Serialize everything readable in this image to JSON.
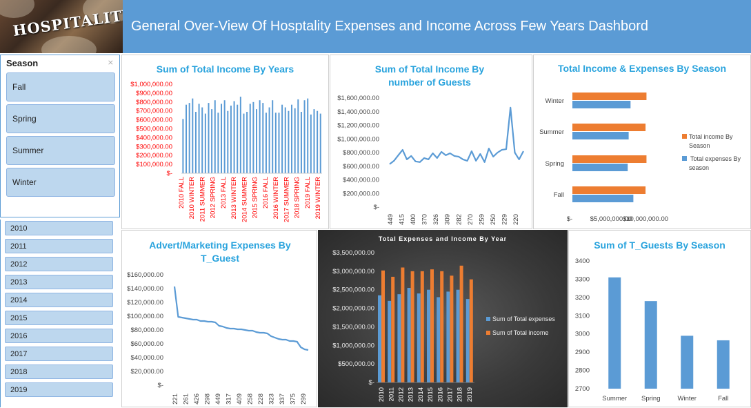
{
  "header": {
    "title": "General Over-View Of Hosptality Expenses and Income Across Few Years Dashbord",
    "logo_text": "HOSPITALITY"
  },
  "season_slicer": {
    "title": "Season",
    "items": [
      "Fall",
      "Spring",
      "Summer",
      "Winter"
    ]
  },
  "year_slicer": {
    "items": [
      "2010",
      "2011",
      "2012",
      "2013",
      "2014",
      "2015",
      "2016",
      "2017",
      "2018",
      "2019"
    ]
  },
  "colors": {
    "blue": "#5b9bd5",
    "orange": "#ed7d31",
    "title": "#29a3dd",
    "red_label": "#ff0000"
  },
  "chart_data": [
    {
      "id": "income_by_years",
      "type": "bar",
      "title": "Sum of Total Income By Years",
      "ylim": [
        0,
        1000000
      ],
      "yticks": [
        "$1,000,000.00",
        "$900,000.00",
        "$800,000.00",
        "$700,000.00",
        "$600,000.00",
        "$500,000.00",
        "$400,000.00",
        "$300,000.00",
        "$200,000.00",
        "$100,000.00",
        "$-"
      ],
      "xtick_labels": [
        "2010 FALL",
        "2010 WINTER",
        "2011 SUMMER",
        "2012 SPRING",
        "2013 FALL",
        "2013 WINTER",
        "2014 SUMMER",
        "2015 SPRING",
        "2016 FALL",
        "2016 WINTER",
        "2017 SUMMER",
        "2018 SPRING",
        "2019 FALL",
        "2019 WINTER"
      ],
      "values": [
        610000,
        770000,
        790000,
        840000,
        690000,
        780000,
        740000,
        670000,
        790000,
        720000,
        820000,
        680000,
        780000,
        820000,
        700000,
        760000,
        810000,
        770000,
        860000,
        670000,
        690000,
        780000,
        800000,
        720000,
        820000,
        790000,
        680000,
        740000,
        820000,
        680000,
        680000,
        770000,
        740000,
        700000,
        770000,
        730000,
        830000,
        690000,
        820000,
        840000,
        660000,
        720000,
        700000,
        670000
      ]
    },
    {
      "id": "income_by_guests",
      "type": "line",
      "title": "Sum of Total Income By number of Guests",
      "ylim": [
        0,
        1700000
      ],
      "yticks": [
        "$1,600,000.00",
        "$1,400,000.00",
        "$1,200,000.00",
        "$1,000,000.00",
        "$800,000.00",
        "$600,000.00",
        "$400,000.00",
        "$200,000.00",
        "$-"
      ],
      "xtick_labels": [
        "449",
        "415",
        "400",
        "370",
        "326",
        "309",
        "282",
        "270",
        "259",
        "250",
        "229",
        "220"
      ],
      "values": [
        630000,
        680000,
        760000,
        840000,
        700000,
        750000,
        670000,
        660000,
        720000,
        700000,
        790000,
        720000,
        810000,
        760000,
        790000,
        750000,
        740000,
        700000,
        680000,
        820000,
        680000,
        780000,
        660000,
        860000,
        740000,
        800000,
        840000,
        850000,
        1460000,
        800000,
        700000,
        820000
      ]
    },
    {
      "id": "income_expenses_by_season",
      "type": "bar",
      "title": "Total Income & Expenses By Season",
      "categories": [
        "Winter",
        "Summer",
        "Spring",
        "Fall"
      ],
      "xticks": [
        "$-",
        "$5,000,000.00",
        "$10,000,000.00"
      ],
      "xlim": [
        0,
        10000000
      ],
      "series": [
        {
          "name": "Total income By Season",
          "values": [
            7900000,
            7800000,
            7900000,
            7800000
          ]
        },
        {
          "name": "Total expenses By season",
          "values": [
            6200000,
            6000000,
            5900000,
            6500000
          ]
        }
      ],
      "legend": "right"
    },
    {
      "id": "advert_by_guest",
      "type": "line",
      "title": "Advert/Marketing Expenses By T_Guest",
      "ylim": [
        0,
        170000
      ],
      "yticks": [
        "$160,000.00",
        "$140,000.00",
        "$120,000.00",
        "$100,000.00",
        "$80,000.00",
        "$60,000.00",
        "$40,000.00",
        "$20,000.00",
        "$-"
      ],
      "xtick_labels": [
        "221",
        "261",
        "426",
        "298",
        "449",
        "317",
        "409",
        "258",
        "228",
        "323",
        "337",
        "375",
        "299"
      ],
      "values": [
        143000,
        99000,
        98000,
        97000,
        96000,
        95000,
        95000,
        93000,
        93000,
        92000,
        92000,
        91000,
        86000,
        85000,
        83000,
        82000,
        82000,
        81000,
        81000,
        80000,
        79000,
        79000,
        77000,
        76000,
        76000,
        75000,
        71000,
        69000,
        67000,
        66000,
        66000,
        64000,
        64000,
        63000,
        55000,
        52000,
        51000
      ]
    },
    {
      "id": "expenses_income_by_year",
      "type": "bar",
      "title": "Total Expenses and Income By Year",
      "categories": [
        "2010",
        "2011",
        "2012",
        "2013",
        "2014",
        "2015",
        "2016",
        "2017",
        "2018",
        "2019"
      ],
      "ylim": [
        0,
        3500000
      ],
      "yticks": [
        "$3,500,000.00",
        "$3,000,000.00",
        "$2,500,000.00",
        "$2,000,000.00",
        "$1,500,000.00",
        "$1,000,000.00",
        "$500,000.00",
        "$-"
      ],
      "series": [
        {
          "name": "Sum of Total expenses",
          "values": [
            2350000,
            2200000,
            2380000,
            2550000,
            2400000,
            2500000,
            2300000,
            2450000,
            2500000,
            2250000
          ]
        },
        {
          "name": "Sum of Total income",
          "values": [
            3020000,
            2850000,
            3100000,
            3000000,
            3000000,
            3050000,
            3000000,
            2880000,
            3150000,
            2780000
          ]
        }
      ],
      "legend": "right"
    },
    {
      "id": "guests_by_season",
      "type": "bar",
      "title": "Sum of T_Guests By Season",
      "categories": [
        "Summer",
        "Spring",
        "Winter",
        "Fall"
      ],
      "values": [
        3310,
        3180,
        2990,
        2965
      ],
      "ylim": [
        2700,
        3400
      ],
      "yticks": [
        "3400",
        "3300",
        "3200",
        "3100",
        "3000",
        "2900",
        "2800",
        "2700"
      ]
    }
  ]
}
